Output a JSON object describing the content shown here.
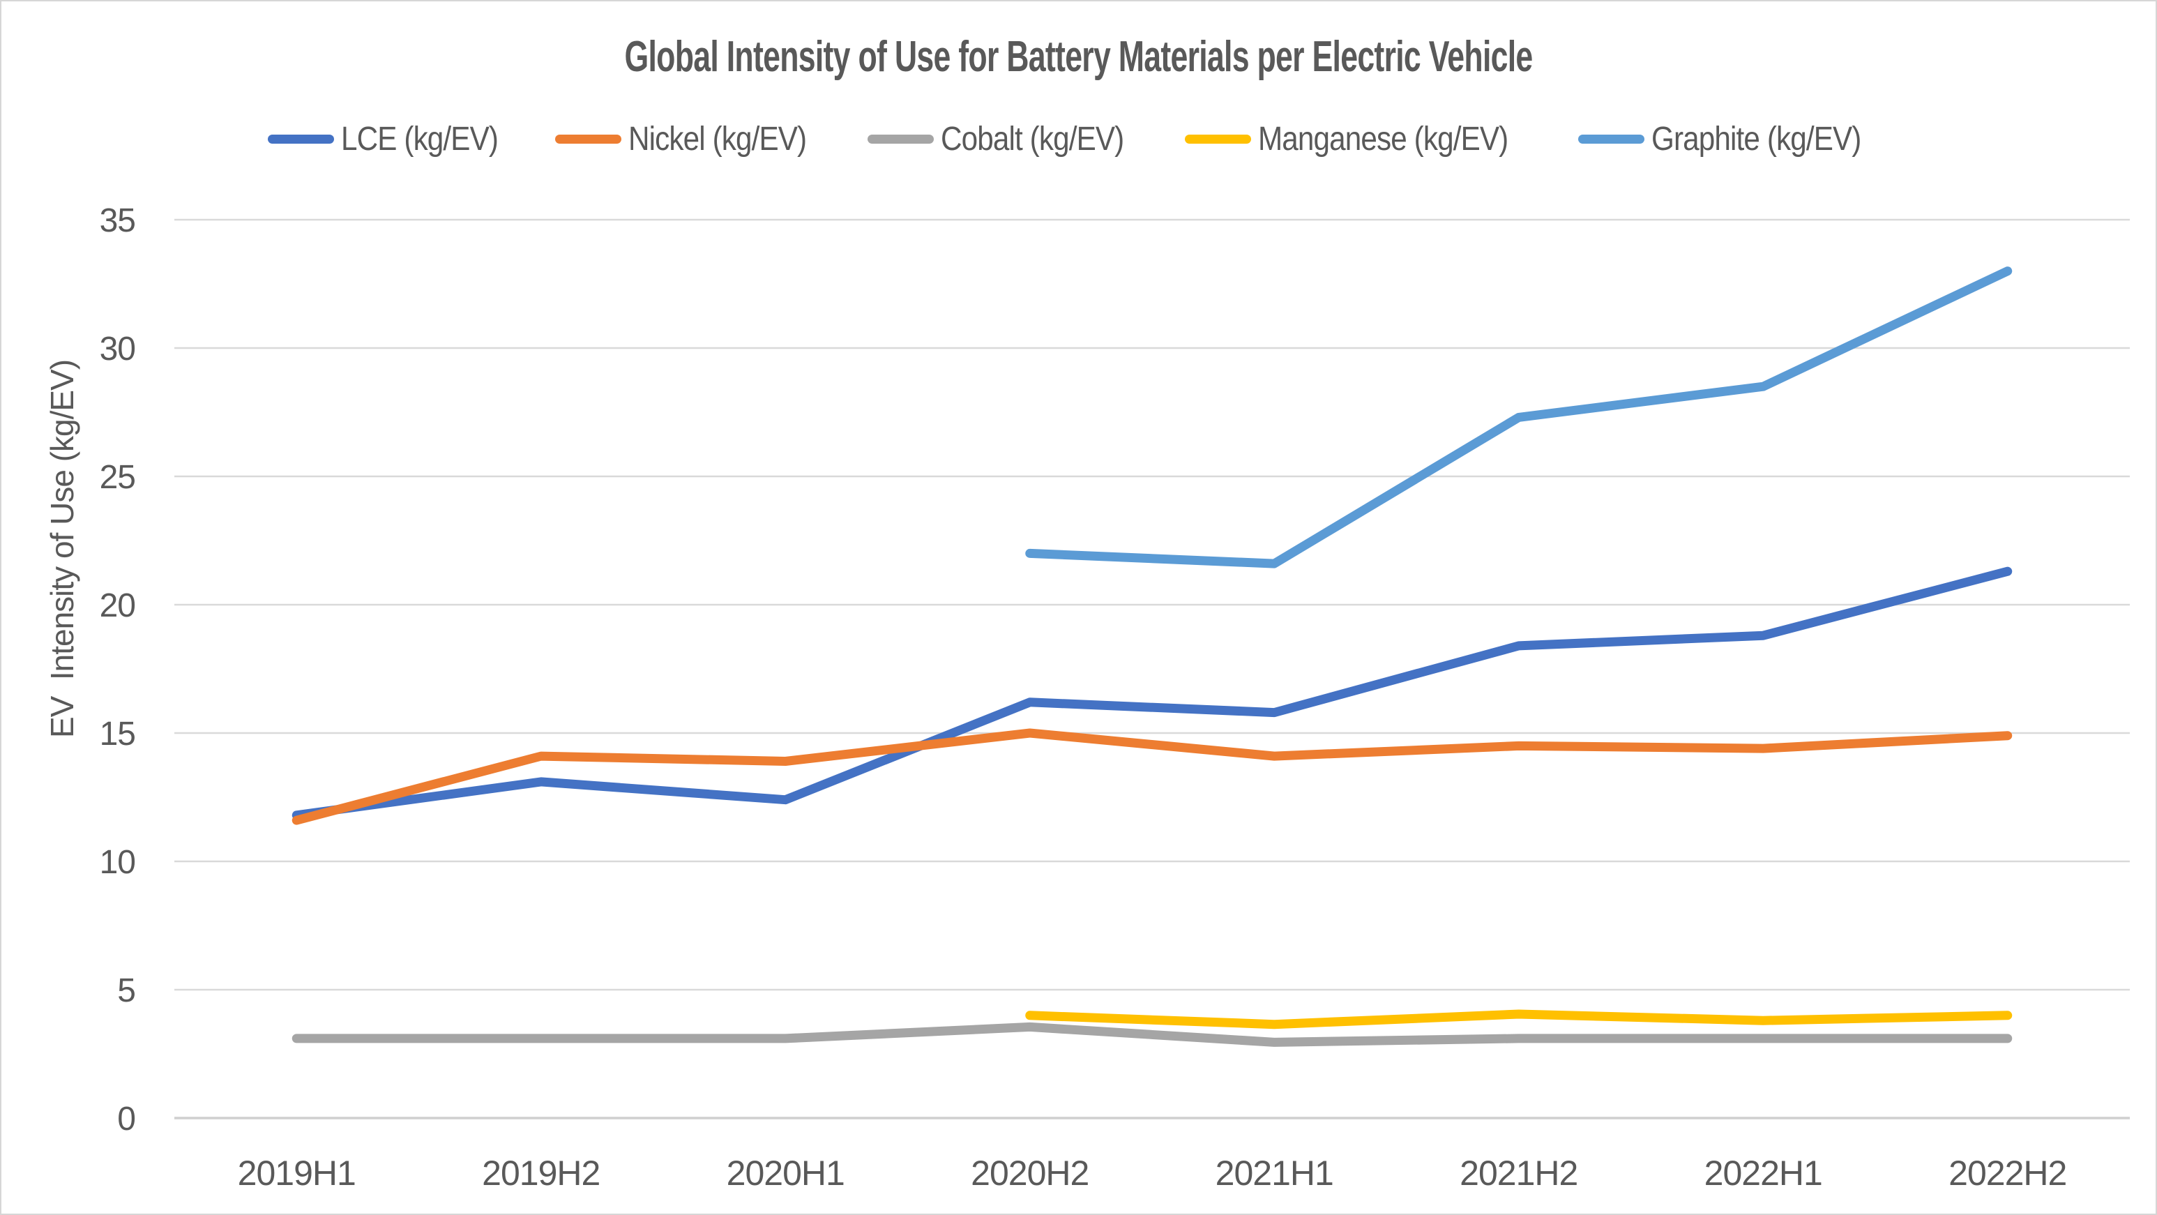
{
  "page": {
    "background": "#ffffff",
    "border_color": "#d6d6d6",
    "text_color": "#595959",
    "gridline_color": "#d9d9d9",
    "axisline_color": "#cfcfcf"
  },
  "chart_data": {
    "type": "line",
    "title": "Global Intensity of Use for Battery Materials per Electric Vehicle",
    "ylabel": "EV  Intensity of Use (kg/EV)",
    "categories": [
      "2019H1",
      "2019H2",
      "2020H1",
      "2020H2",
      "2021H1",
      "2021H2",
      "2022H1",
      "2022H2"
    ],
    "series": [
      {
        "name": "LCE (kg/EV)",
        "color": "#4472C4",
        "values": [
          11.8,
          13.1,
          12.4,
          16.2,
          15.8,
          18.4,
          18.8,
          21.3
        ]
      },
      {
        "name": "Nickel (kg/EV)",
        "color": "#ED7D31",
        "values": [
          11.6,
          14.1,
          13.9,
          15.0,
          14.1,
          14.5,
          14.4,
          14.9
        ]
      },
      {
        "name": "Cobalt (kg/EV)",
        "color": "#A5A5A5",
        "values": [
          3.1,
          3.1,
          3.1,
          3.55,
          2.95,
          3.1,
          3.1,
          3.1
        ]
      },
      {
        "name": "Manganese (kg/EV)",
        "color": "#FFC000",
        "values": [
          null,
          null,
          null,
          4.0,
          3.65,
          4.05,
          3.8,
          4.0
        ]
      },
      {
        "name": "Graphite (kg/EV)",
        "color": "#5B9BD5",
        "values": [
          null,
          null,
          null,
          22.0,
          21.6,
          27.3,
          28.5,
          33.0
        ]
      }
    ],
    "y_axis": {
      "min": 0,
      "max": 35,
      "step": 5,
      "ticks": [
        0,
        5,
        10,
        15,
        20,
        25,
        30,
        35
      ]
    },
    "x_axis_label": "",
    "grid": true,
    "legend_position": "top"
  }
}
